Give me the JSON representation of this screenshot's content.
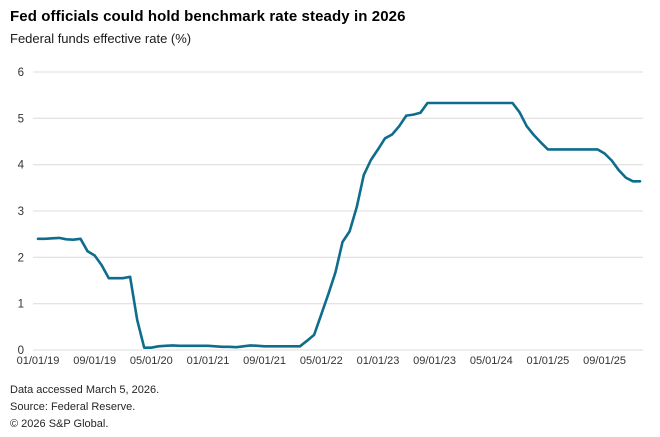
{
  "header": {
    "title": "Fed officials could hold benchmark rate steady in 2026",
    "subtitle": "Federal funds effective rate (%)"
  },
  "chart_data": {
    "type": "line",
    "title": "Fed officials could hold benchmark rate steady in 2026",
    "ylabel": "Federal funds effective rate (%)",
    "xlabel": "",
    "frequency": "monthly",
    "x": [
      "2019-01",
      "2019-02",
      "2019-03",
      "2019-04",
      "2019-05",
      "2019-06",
      "2019-07",
      "2019-08",
      "2019-09",
      "2019-10",
      "2019-11",
      "2019-12",
      "2020-01",
      "2020-02",
      "2020-03",
      "2020-04",
      "2020-05",
      "2020-06",
      "2020-07",
      "2020-08",
      "2020-09",
      "2020-10",
      "2020-11",
      "2020-12",
      "2021-01",
      "2021-02",
      "2021-03",
      "2021-04",
      "2021-05",
      "2021-06",
      "2021-07",
      "2021-08",
      "2021-09",
      "2021-10",
      "2021-11",
      "2021-12",
      "2022-01",
      "2022-02",
      "2022-03",
      "2022-04",
      "2022-05",
      "2022-06",
      "2022-07",
      "2022-08",
      "2022-09",
      "2022-10",
      "2022-11",
      "2022-12",
      "2023-01",
      "2023-02",
      "2023-03",
      "2023-04",
      "2023-05",
      "2023-06",
      "2023-07",
      "2023-08",
      "2023-09",
      "2023-10",
      "2023-11",
      "2023-12",
      "2024-01",
      "2024-02",
      "2024-03",
      "2024-04",
      "2024-05",
      "2024-06",
      "2024-07",
      "2024-08",
      "2024-09",
      "2024-10",
      "2024-11",
      "2024-12",
      "2025-01",
      "2025-02",
      "2025-03",
      "2025-04",
      "2025-05",
      "2025-06",
      "2025-07",
      "2025-08",
      "2025-09",
      "2025-10",
      "2025-11",
      "2025-12",
      "2026-01",
      "2026-02"
    ],
    "values": [
      2.4,
      2.4,
      2.41,
      2.42,
      2.39,
      2.38,
      2.4,
      2.13,
      2.04,
      1.83,
      1.55,
      1.55,
      1.55,
      1.58,
      0.65,
      0.05,
      0.05,
      0.08,
      0.09,
      0.1,
      0.09,
      0.09,
      0.09,
      0.09,
      0.09,
      0.08,
      0.07,
      0.07,
      0.06,
      0.08,
      0.1,
      0.09,
      0.08,
      0.08,
      0.08,
      0.08,
      0.08,
      0.08,
      0.2,
      0.33,
      0.77,
      1.21,
      1.68,
      2.33,
      2.56,
      3.08,
      3.78,
      4.1,
      4.33,
      4.57,
      4.65,
      4.83,
      5.06,
      5.08,
      5.12,
      5.33,
      5.33,
      5.33,
      5.33,
      5.33,
      5.33,
      5.33,
      5.33,
      5.33,
      5.33,
      5.33,
      5.33,
      5.33,
      5.13,
      4.83,
      4.64,
      4.48,
      4.33,
      4.33,
      4.33,
      4.33,
      4.33,
      4.33,
      4.33,
      4.33,
      4.24,
      4.09,
      3.88,
      3.72,
      3.64,
      3.64
    ],
    "x_tick_labels": [
      "01/01/19",
      "09/01/19",
      "05/01/20",
      "01/01/21",
      "09/01/21",
      "05/01/22",
      "01/01/23",
      "09/01/23",
      "05/01/24",
      "01/01/25",
      "09/01/25"
    ],
    "x_tick_indices": [
      0,
      8,
      16,
      24,
      32,
      40,
      48,
      56,
      64,
      72,
      80
    ],
    "y_ticks": [
      0,
      1,
      2,
      3,
      4,
      5,
      6
    ],
    "ylim": [
      0,
      6
    ],
    "grid": "horizontal",
    "legend_position": "none",
    "line_color": "#0e6d8c",
    "grid_color": "#dcdcdc",
    "axis_label_color": "#333333"
  },
  "footer": {
    "lines": [
      "Data accessed March 5, 2026.",
      "Source: Federal Reserve.",
      "© 2026 S&P Global."
    ]
  }
}
